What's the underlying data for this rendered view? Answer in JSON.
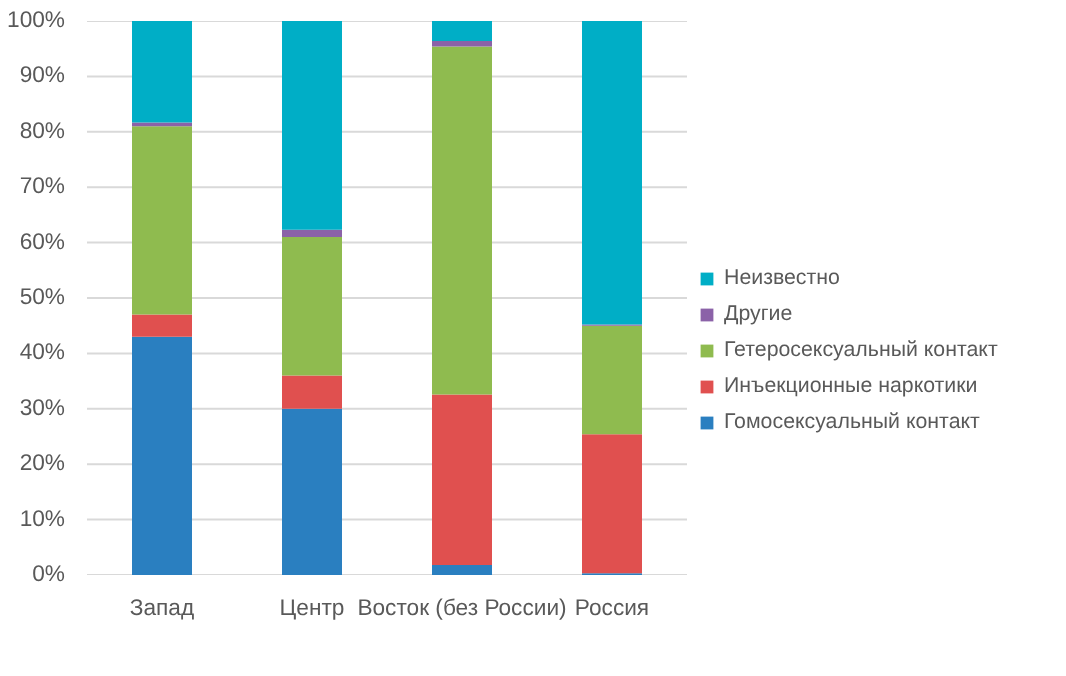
{
  "chart_data": {
    "type": "bar",
    "stacked": true,
    "categories": [
      "Запад",
      "Центр",
      "Восток (без России)",
      "Россия"
    ],
    "series": [
      {
        "name": "Гомосексуальный контакт",
        "color": "#2a7fc0",
        "values": [
          43,
          30,
          1.8,
          0.3
        ]
      },
      {
        "name": "Инъекционные наркотики",
        "color": "#e0504f",
        "values": [
          4,
          6,
          30.8,
          25.1
        ]
      },
      {
        "name": "Гетеросексуальный контакт",
        "color": "#8fbb4f",
        "values": [
          34,
          25,
          62.8,
          19.6
        ]
      },
      {
        "name": "Другие",
        "color": "#8b62a8",
        "values": [
          0.7,
          1.3,
          1,
          0.2
        ]
      },
      {
        "name": "Неизвестно",
        "color": "#00aec6",
        "values": [
          18.3,
          37.7,
          3.6,
          54.8
        ]
      }
    ],
    "ylim": [
      0,
      100
    ],
    "yticks": [
      {
        "value": 0,
        "label": "0%"
      },
      {
        "value": 10,
        "label": "10%"
      },
      {
        "value": 20,
        "label": "20%"
      },
      {
        "value": 30,
        "label": "30%"
      },
      {
        "value": 40,
        "label": "40%"
      },
      {
        "value": 50,
        "label": "50%"
      },
      {
        "value": 60,
        "label": "60%"
      },
      {
        "value": 70,
        "label": "70%"
      },
      {
        "value": 80,
        "label": "80%"
      },
      {
        "value": 90,
        "label": "90%"
      },
      {
        "value": 100,
        "label": "100%"
      }
    ],
    "grid": "y",
    "legend": "right"
  }
}
